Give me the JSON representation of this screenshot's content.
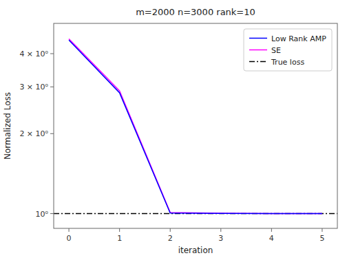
{
  "chart_data": {
    "type": "line",
    "title": "m=2000 n=3000 rank=10",
    "xlabel": "iteration",
    "ylabel": "Normalized Loss",
    "x": [
      0,
      1,
      2,
      3,
      4,
      5
    ],
    "series": [
      {
        "name": "Low Rank AMP",
        "color": "#0000ff",
        "line_style": "solid",
        "values": [
          4.5,
          2.85,
          1.005,
          1.002,
          1.001,
          1.0005
        ]
      },
      {
        "name": "SE",
        "color": "#ff00ff",
        "line_style": "solid",
        "values": [
          4.55,
          2.9,
          1.01,
          1.003,
          1.001,
          1.0005
        ]
      }
    ],
    "hlines": [
      {
        "name": "True loss",
        "value": 1.0,
        "color": "#000000",
        "line_style": "dash-dot"
      }
    ],
    "xlim": [
      -0.3,
      5.3
    ],
    "xticks": [
      0,
      1,
      2,
      3,
      4,
      5
    ],
    "ylim": [
      0.88,
      5.2
    ],
    "yticks": [
      {
        "value": 1,
        "label": "10⁰"
      },
      {
        "value": 2,
        "label": "2 × 10⁰"
      },
      {
        "value": 3,
        "label": "3 × 10⁰"
      },
      {
        "value": 4,
        "label": "4 × 10⁰"
      }
    ],
    "log": "y",
    "grid": false,
    "legend": "upper right"
  }
}
